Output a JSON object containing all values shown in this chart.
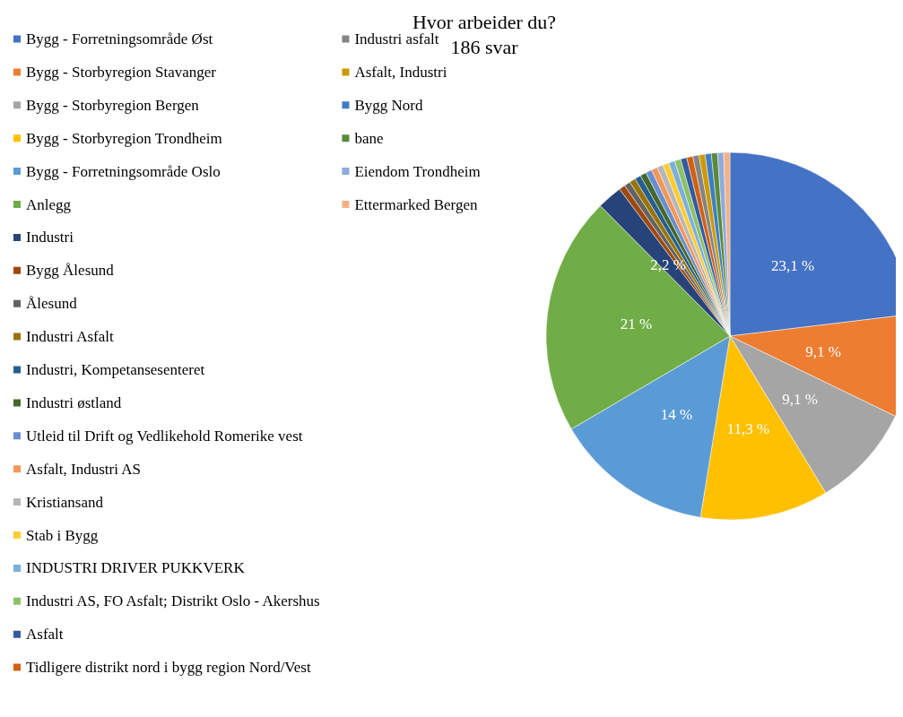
{
  "chart_data": {
    "type": "pie",
    "title": "Hvor arbeider du?",
    "subtitle": "186 svar",
    "legend": "left",
    "categories": [
      "Bygg - Forretningsområde Øst",
      "Bygg - Storbyregion Stavanger",
      "Bygg - Storbyregion Bergen",
      "Bygg - Storbyregion Trondheim",
      "Bygg - Forretningsområde Oslo",
      "Anlegg",
      "Industri",
      "Bygg Ålesund",
      "Ålesund",
      "Industri Asfalt",
      "Industri, Kompetansesenteret",
      "Industri østland",
      "Utleid til Drift og Vedlikehold Romerike vest",
      "Asfalt, Industri AS",
      "Kristiansand",
      "Stab i Bygg",
      "INDUSTRI DRIVER PUKKVERK",
      "Industri AS, FO Asfalt; Distrikt Oslo - Akershus",
      "Asfalt",
      "Tidligere distrikt nord i bygg region Nord/Vest",
      "Industri asfalt",
      "Asfalt, Industri",
      "Bygg Nord",
      "bane",
      "Eiendom Trondheim",
      "Ettermarked Bergen"
    ],
    "values": [
      23.1,
      9.1,
      9.1,
      11.3,
      14,
      21,
      2.2,
      0.54,
      0.54,
      0.54,
      0.54,
      0.54,
      0.54,
      0.54,
      0.54,
      0.54,
      0.54,
      0.54,
      0.54,
      0.54,
      0.54,
      0.54,
      0.54,
      0.54,
      0.54,
      0.54
    ],
    "value_labels": [
      "23,1 %",
      "9,1 %",
      "9,1 %",
      "11,3 %",
      "14 %",
      "21 %",
      "2,2 %",
      null,
      null,
      null,
      null,
      null,
      null,
      null,
      null,
      null,
      null,
      null,
      null,
      null,
      null,
      null,
      null,
      null,
      null,
      null
    ],
    "colors": [
      "#4472c4",
      "#ed7d31",
      "#a5a5a5",
      "#ffc000",
      "#5b9bd5",
      "#70ad47",
      "#264478",
      "#9e480e",
      "#636363",
      "#997300",
      "#255e91",
      "#43682b",
      "#698ed0",
      "#f1975a",
      "#b7b7b7",
      "#ffcd33",
      "#7cafdd",
      "#8cc168",
      "#335aa1",
      "#d26012",
      "#848484",
      "#cc9a00",
      "#3c7dc4",
      "#5a8a39",
      "#8faadc",
      "#f4b183"
    ]
  }
}
